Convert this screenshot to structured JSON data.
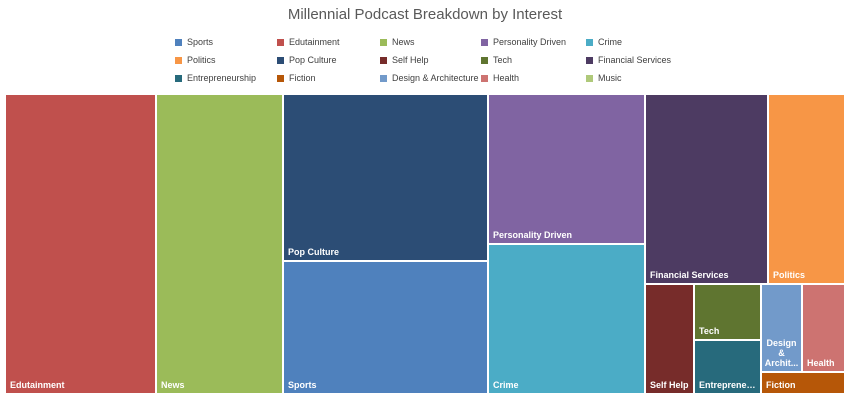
{
  "chart_data": {
    "type": "treemap",
    "title": "Millennial Podcast Breakdown by Interest",
    "legend_position": "top",
    "categories": [
      {
        "name": "Sports",
        "color": "#4f81bd",
        "value": 8.7
      },
      {
        "name": "Edutainment",
        "color": "#c0504d",
        "value": 17.7
      },
      {
        "name": "News",
        "color": "#9bbb59",
        "value": 14.9
      },
      {
        "name": "Personality Driven",
        "color": "#8064a2",
        "value": 8.8
      },
      {
        "name": "Crime",
        "color": "#4bacc6",
        "value": 8.8
      },
      {
        "name": "Politics",
        "color": "#f79646",
        "value": 5.6
      },
      {
        "name": "Pop Culture",
        "color": "#2c4d75",
        "value": 9.8
      },
      {
        "name": "Self Help",
        "color": "#772c2a",
        "value": 1.7
      },
      {
        "name": "Tech",
        "color": "#5f7530",
        "value": 1.0
      },
      {
        "name": "Financial Services",
        "color": "#4d3b62",
        "value": 8.6
      },
      {
        "name": "Entrepreneurship",
        "color": "#276a7c",
        "value": 1.0
      },
      {
        "name": "Fiction",
        "color": "#b65708",
        "value": 0.8
      },
      {
        "name": "Design & Architecture",
        "color": "#729aca",
        "value": 1.2
      },
      {
        "name": "Health",
        "color": "#cd7371",
        "value": 1.2
      },
      {
        "name": "Music",
        "color": "#afc97a",
        "value": 0
      }
    ],
    "tile_labels": {
      "Design & Architecture": "Design & Archit...",
      "Entrepreneurship": "Entrepreneu..."
    }
  }
}
